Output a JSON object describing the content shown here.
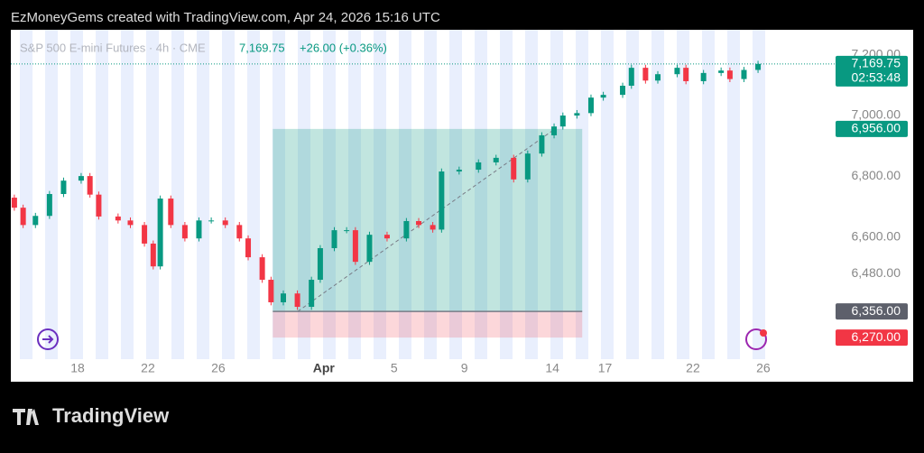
{
  "header": "EzMoneyGems created with TradingView.com, Apr 24, 2026 15:16 UTC",
  "footer": "TradingView",
  "chart_data": {
    "type": "candlestick",
    "symbol": "S&P 500 E-mini Futures · 4h · CME",
    "last": "7,169.75",
    "change": "+26.00 (+0.36%)",
    "up_color": "#089981",
    "down_color": "#f23645",
    "x": [
      14.4,
      14.9,
      15.6,
      16.4,
      17.2,
      18.2,
      18.7,
      19.2,
      20.3,
      21.0,
      21.8,
      22.3,
      22.7,
      23.3,
      24.1,
      24.9,
      25.6,
      26.4,
      27.2,
      27.7,
      28.5,
      29.0,
      29.7,
      30.5,
      31.3,
      31.8,
      32.6,
      33.3,
      33.8,
      34.6,
      35.6,
      36.7,
      37.4,
      38.2,
      38.7,
      39.7,
      40.8,
      41.8,
      42.8,
      43.6,
      44.4,
      45.1,
      45.6,
      46.4,
      47.2,
      47.9,
      49.0,
      49.5,
      50.3,
      51.0,
      52.1,
      52.6,
      53.6,
      54.6,
      55.1,
      55.9,
      56.7
    ],
    "open": [
      6730,
      6697,
      6640,
      6670,
      6742,
      6786,
      6801,
      6740,
      6668,
      6655,
      6640,
      6579,
      6504,
      6727,
      6640,
      6596,
      6655,
      6655,
      6640,
      6596,
      6534,
      6460,
      6386,
      6415,
      6371,
      6460,
      6564,
      6623,
      6623,
      6519,
      6608,
      6596,
      6653,
      6640,
      6625,
      6816,
      6822,
      6846,
      6861,
      6790,
      6875,
      6935,
      6964,
      7000,
      7008,
      7059,
      7068,
      7098,
      7157,
      7115,
      7136,
      7157,
      7113,
      7140,
      7148,
      7120,
      7150
    ],
    "high": [
      6740,
      6707,
      6680,
      6752,
      6796,
      6811,
      6811,
      6750,
      6678,
      6665,
      6650,
      6589,
      6737,
      6737,
      6650,
      6665,
      6665,
      6665,
      6650,
      6606,
      6544,
      6470,
      6425,
      6425,
      6470,
      6574,
      6633,
      6633,
      6633,
      6618,
      6618,
      6663,
      6663,
      6650,
      6826,
      6832,
      6856,
      6871,
      6871,
      6885,
      6945,
      6974,
      7010,
      7018,
      7069,
      7078,
      7108,
      7167,
      7167,
      7146,
      7167,
      7167,
      7150,
      7158,
      7158,
      7160,
      7180
    ],
    "low": [
      6687,
      6630,
      6630,
      6660,
      6732,
      6776,
      6730,
      6658,
      6645,
      6630,
      6569,
      6494,
      6494,
      6630,
      6586,
      6586,
      6645,
      6630,
      6586,
      6524,
      6450,
      6376,
      6376,
      6361,
      6361,
      6450,
      6554,
      6613,
      6509,
      6509,
      6586,
      6586,
      6630,
      6615,
      6615,
      6806,
      6812,
      6836,
      6780,
      6780,
      6865,
      6925,
      6954,
      6990,
      6998,
      7049,
      7058,
      7088,
      7105,
      7105,
      7126,
      7103,
      7103,
      7130,
      7110,
      7110,
      7140
    ],
    "close": [
      6697,
      6640,
      6670,
      6742,
      6786,
      6801,
      6740,
      6668,
      6655,
      6640,
      6579,
      6504,
      6727,
      6640,
      6596,
      6655,
      6655,
      6640,
      6596,
      6534,
      6460,
      6386,
      6415,
      6371,
      6460,
      6564,
      6623,
      6623,
      6519,
      6608,
      6596,
      6653,
      6640,
      6625,
      6816,
      6822,
      6846,
      6861,
      6790,
      6875,
      6935,
      6964,
      7000,
      7008,
      7059,
      7068,
      7098,
      7157,
      7115,
      7136,
      7157,
      7113,
      7140,
      7148,
      7120,
      7150,
      7169.75
    ],
    "xlim": [
      14.2,
      60.7
    ],
    "ylim": [
      6199,
      7282
    ],
    "xticks": [
      18,
      22,
      26,
      {
        "value": 32,
        "label": "Apr"
      },
      {
        "value": 36,
        "label": "5"
      },
      {
        "value": 40,
        "label": "9"
      },
      {
        "value": 45,
        "label": "14"
      },
      {
        "value": 48,
        "label": "17"
      },
      {
        "value": 53,
        "label": "22"
      },
      {
        "value": 57,
        "label": "26"
      }
    ],
    "yticks": [
      {
        "value": 7200,
        "label": "7,200.00"
      },
      {
        "value": 7000,
        "label": "7,000.00"
      },
      {
        "value": 6800,
        "label": "6,800.00"
      },
      {
        "value": 6600,
        "label": "6,600.00"
      },
      {
        "value": 6480,
        "label": "6,480.00"
      }
    ],
    "current_price": {
      "value": 7169.75,
      "label": "7,169.75"
    },
    "countdown": "02:53:48",
    "position": {
      "x_start": 29.1,
      "x_end": 46.7,
      "target": {
        "value": 6956,
        "label": "6,956.00"
      },
      "entry": {
        "value": 6356,
        "label": "6,356.00"
      },
      "stop": {
        "value": 6270,
        "label": "6,270.00"
      }
    }
  }
}
